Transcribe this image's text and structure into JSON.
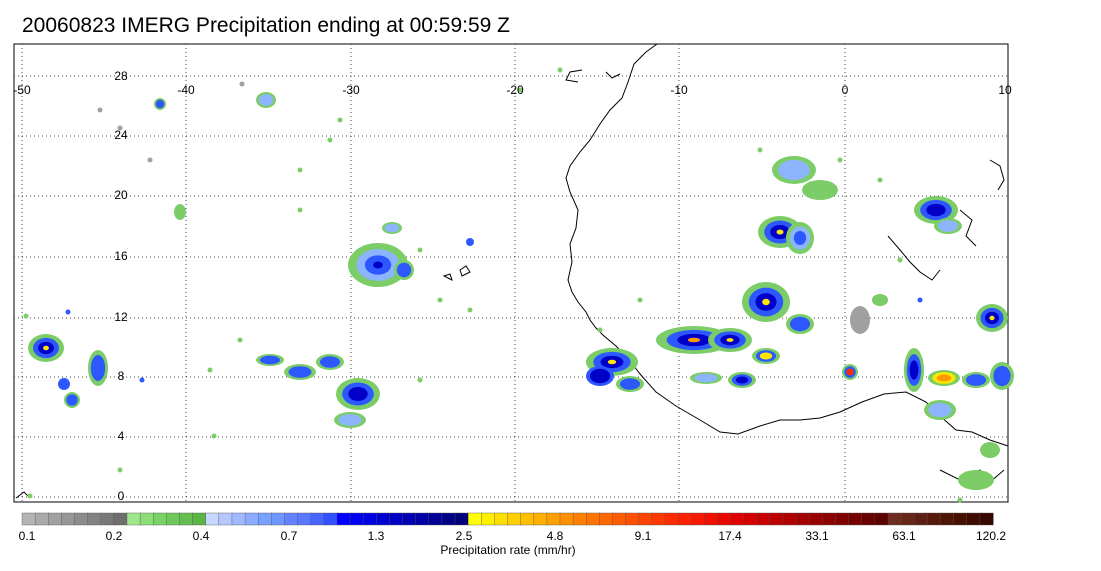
{
  "title": "20060823 IMERG Precipitation ending at 00:59:59 Z",
  "map": {
    "lon_labels": [
      "-50",
      "-40",
      "-30",
      "-20",
      "-10",
      "0",
      "10"
    ],
    "lat_labels": [
      "28",
      "24",
      "20",
      "16",
      "12",
      "8",
      "4",
      "0"
    ]
  },
  "colorbar": {
    "title": "Precipitation rate (mm/hr)",
    "colors": [
      "#b4b4b4",
      "#aaaaaa",
      "#a0a0a0",
      "#969696",
      "#8c8c8c",
      "#828282",
      "#787878",
      "#6e6e6e",
      "#a0e68c",
      "#8cdc78",
      "#78d264",
      "#6ec85a",
      "#64be50",
      "#5ab446",
      "#c8d7ff",
      "#b4c8ff",
      "#a0b9ff",
      "#8cacff",
      "#78a0ff",
      "#6e96ff",
      "#6482ff",
      "#5a78ff",
      "#4664ff",
      "#3250ff",
      "#0000ff",
      "#0000f0",
      "#0000e1",
      "#0000d2",
      "#0000c3",
      "#0000b4",
      "#0000a5",
      "#000096",
      "#000087",
      "#000078",
      "#ffff00",
      "#ffef00",
      "#ffdf00",
      "#ffcf00",
      "#ffbf00",
      "#ffaf00",
      "#ff9f00",
      "#ff8f00",
      "#ff8000",
      "#ff7400",
      "#ff6800",
      "#ff5c00",
      "#ff5000",
      "#ff4400",
      "#ff3800",
      "#ff2c00",
      "#ff2000",
      "#f81800",
      "#f01000",
      "#e80800",
      "#e00000",
      "#d40000",
      "#c80000",
      "#bc0000",
      "#b00000",
      "#a40000",
      "#980000",
      "#8c0000",
      "#800000",
      "#740000",
      "#680000",
      "#5c0000",
      "#6e2c1e",
      "#662618",
      "#5e2012",
      "#561a0c",
      "#4e1406",
      "#461000",
      "#3e0c00",
      "#360800"
    ],
    "tick_labels": [
      "0.1",
      "0.2",
      "0.4",
      "0.7",
      "1.3",
      "2.5",
      "4.8",
      "9.1",
      "17.4",
      "33.1",
      "63.1",
      "120.2"
    ]
  }
}
